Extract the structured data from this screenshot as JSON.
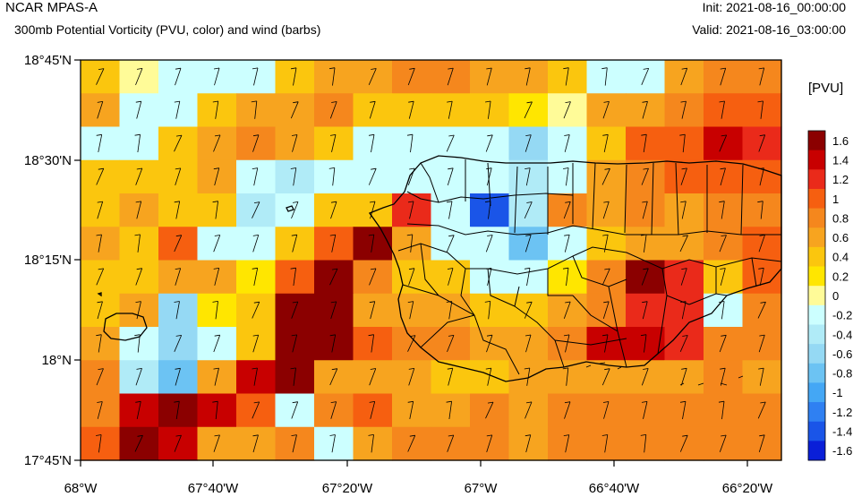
{
  "header": {
    "title": "NCAR MPAS-A",
    "subtitle": "300mb Potential Vorticity (PVU, color) and wind (barbs)",
    "init": "Init: 2021-08-16_00:00:00",
    "valid": "Valid: 2021-08-16_03:00:00"
  },
  "colorbar": {
    "title": "[PVU]",
    "labels": [
      "1.6",
      "1.4",
      "1.2",
      "1",
      "0.8",
      "0.6",
      "0.4",
      "0.2",
      "0",
      "-0.2",
      "-0.4",
      "-0.6",
      "-0.8",
      "-1",
      "-1.2",
      "-1.4",
      "-1.6"
    ],
    "colors": [
      "#8b0000",
      "#c80000",
      "#ea2a1a",
      "#f65f10",
      "#f5871d",
      "#f7a41f",
      "#fbc60e",
      "#ffe600",
      "#fffb98",
      "#ccffff",
      "#b0ebf7",
      "#95d9f4",
      "#6cc3f3",
      "#44a7f5",
      "#2f80f2",
      "#1a55e8",
      "#0a1fd8"
    ]
  },
  "map": {
    "lat_labels": [
      "18°45'N",
      "18°30'N",
      "18°15'N",
      "18°N",
      "17°45'N"
    ],
    "lon_labels": [
      "68°W",
      "67°40'W",
      "67°20'W",
      "67°W",
      "66°40'W",
      "66°20'W"
    ],
    "pv_grid": [
      [
        2,
        0,
        -1,
        -1,
        -1,
        2,
        3,
        3,
        4,
        4,
        3,
        3,
        2,
        -1,
        -1,
        3,
        4,
        4
      ],
      [
        3,
        -1,
        -1,
        2,
        3,
        3,
        4,
        2,
        2,
        2,
        2,
        1,
        0,
        3,
        3,
        4,
        5,
        5
      ],
      [
        -1,
        -1,
        2,
        3,
        4,
        3,
        2,
        -1,
        -1,
        -1,
        -1,
        -3,
        -1,
        2,
        5,
        5,
        7,
        6
      ],
      [
        2,
        2,
        2,
        3,
        -1,
        -2,
        -1,
        -1,
        -1,
        -1,
        -1,
        -2,
        -1,
        3,
        4,
        5,
        5,
        5
      ],
      [
        2,
        3,
        2,
        2,
        -2,
        -1,
        2,
        2,
        6,
        -1,
        -7,
        -2,
        4,
        3,
        4,
        3,
        4,
        4
      ],
      [
        3,
        2,
        5,
        -1,
        -1,
        2,
        5,
        8,
        3,
        -1,
        -1,
        -4,
        -1,
        2,
        3,
        3,
        4,
        5
      ],
      [
        2,
        2,
        3,
        3,
        1,
        5,
        8,
        4,
        2,
        2,
        -1,
        -1,
        1,
        4,
        8,
        6,
        2,
        5
      ],
      [
        2,
        3,
        -3,
        1,
        2,
        8,
        9,
        3,
        3,
        3,
        2,
        2,
        3,
        4,
        6,
        6,
        -1,
        4
      ],
      [
        3,
        -1,
        -3,
        -1,
        2,
        9,
        8,
        5,
        4,
        4,
        3,
        3,
        4,
        7,
        7,
        6,
        4,
        4
      ],
      [
        4,
        -2,
        -4,
        3,
        7,
        9,
        3,
        3,
        3,
        2,
        2,
        3,
        3,
        3,
        3,
        3,
        4,
        3
      ],
      [
        4,
        7,
        9,
        7,
        5,
        -1,
        4,
        5,
        3,
        3,
        4,
        3,
        4,
        4,
        4,
        4,
        4,
        4
      ],
      [
        5,
        8,
        7,
        3,
        3,
        4,
        -1,
        3,
        4,
        4,
        4,
        3,
        4,
        4,
        4,
        4,
        4,
        4
      ]
    ]
  }
}
